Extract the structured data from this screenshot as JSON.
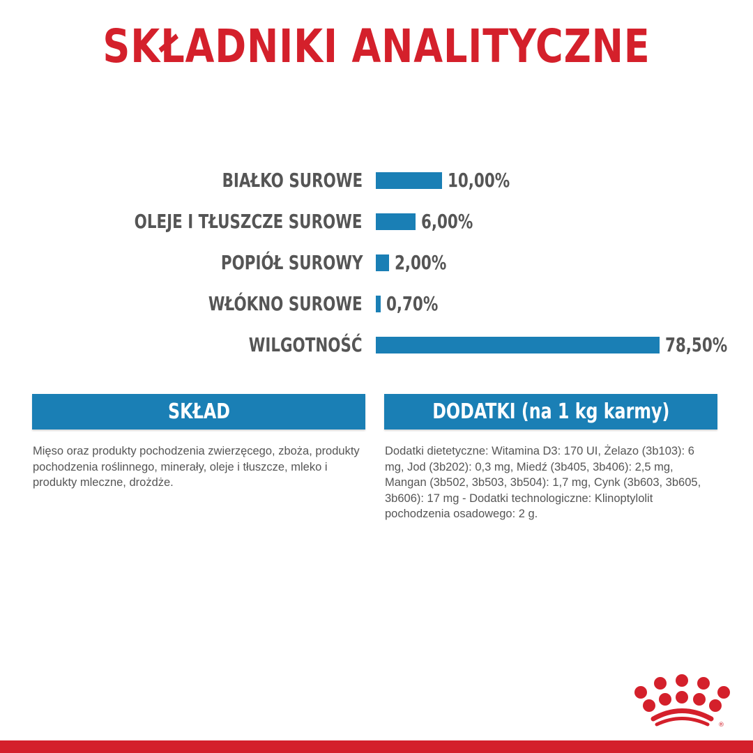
{
  "title": "SKŁADNIKI ANALITYCZNE",
  "colors": {
    "title": "#d4202b",
    "bar": "#1a7fb5",
    "text": "#555555",
    "brand": "#d4202b"
  },
  "chart_data": {
    "type": "bar",
    "orientation": "horizontal",
    "categories": [
      "BIAŁKO SUROWE",
      "OLEJE I TŁUSZCZE SUROWE",
      "POPIÓŁ SUROWY",
      "WŁÓKNO SUROWE",
      "WILGOTNOŚĆ"
    ],
    "values": [
      10.0,
      6.0,
      2.0,
      0.7,
      78.5
    ],
    "value_labels": [
      "10,00%",
      "6,00%",
      "2,00%",
      "0,70%",
      "78,50%"
    ],
    "unit": "%",
    "grid": false
  },
  "sections": [
    {
      "header": "SKŁAD",
      "text": "Mięso oraz produkty pochodzenia zwierzęcego, zboża, produkty pochodzenia roślinnego, minerały, oleje i tłuszcze, mleko i produkty mleczne, drożdże."
    },
    {
      "header": "DODATKI (na 1 kg karmy)",
      "text": "Dodatki dietetyczne: Witamina D3: 170 UI, Żelazo (3b103): 6 mg, Jod (3b202): 0,3 mg, Miedź (3b405, 3b406): 2,5 mg, Mangan (3b502, 3b503, 3b504): 1,7 mg, Cynk (3b603, 3b605, 3b606): 17 mg - Dodatki technologiczne: Klinoptylolit pochodzenia osadowego: 2 g."
    }
  ],
  "logo": {
    "icon": "royal-canin-crown-logo",
    "mark": "®"
  }
}
